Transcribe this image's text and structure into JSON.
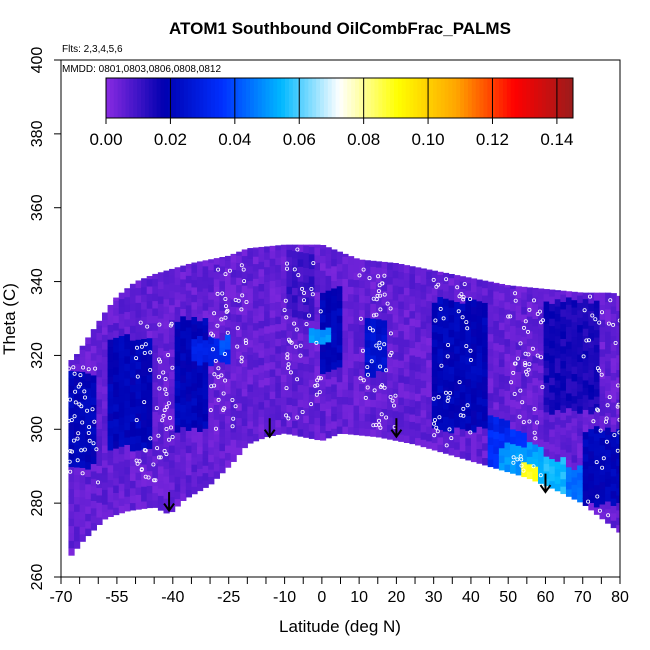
{
  "chart_data": {
    "type": "heatmap",
    "title": "ATOM1 Southbound OilCombFrac_PALMS",
    "notes": [
      "Flts: 2,3,4,5,6",
      "MMDD: 0801,0803,0806,0808,0812"
    ],
    "xlabel": "Latitude (deg N)",
    "ylabel": "Theta (C)",
    "xlim": [
      -70,
      80
    ],
    "ylim": [
      260,
      400
    ],
    "x_ticks_labeled": [
      "-70",
      "-55",
      "-40",
      "-25",
      "-10",
      "0",
      "10",
      "20",
      "30",
      "40",
      "50",
      "60",
      "70",
      "80"
    ],
    "x_ticks_labeled_values": [
      -70,
      -55,
      -40,
      -25,
      -10,
      0,
      10,
      20,
      30,
      40,
      50,
      60,
      70,
      80
    ],
    "x_ticks_minor": [
      -65,
      -60,
      -50,
      -45,
      -35,
      -30,
      -20,
      -15,
      -5,
      5,
      15,
      25,
      35,
      45,
      55,
      65,
      75
    ],
    "y_ticks": [
      260,
      280,
      300,
      320,
      340,
      360,
      380,
      400
    ],
    "colorbar": {
      "min": 0,
      "max": 0.145,
      "ticks": [
        0.0,
        0.02,
        0.04,
        0.06,
        0.08,
        0.1,
        0.12,
        0.14
      ],
      "tick_labels": [
        "0.00",
        "0.02",
        "0.04",
        "0.06",
        "0.08",
        "0.10",
        "0.12",
        "0.14"
      ],
      "colors": [
        "#8a2be2",
        "#0000b0",
        "#0030ff",
        "#00b8ff",
        "#ffffff",
        "#ffff00",
        "#ffa500",
        "#ff0000",
        "#9b1c1c"
      ]
    },
    "field_background_value": 0.005,
    "top_boundary": [
      [
        -68,
        318
      ],
      [
        -66,
        320
      ],
      [
        -62,
        326
      ],
      [
        -58,
        332
      ],
      [
        -55,
        336
      ],
      [
        -50,
        340
      ],
      [
        -45,
        342
      ],
      [
        -35,
        345
      ],
      [
        -25,
        347
      ],
      [
        -20,
        349
      ],
      [
        -10,
        350
      ],
      [
        0,
        350
      ],
      [
        10,
        346
      ],
      [
        20,
        345
      ],
      [
        30,
        343
      ],
      [
        40,
        341
      ],
      [
        50,
        339
      ],
      [
        60,
        338
      ],
      [
        70,
        337
      ],
      [
        78,
        337
      ],
      [
        80,
        336
      ]
    ],
    "bottom_boundary": [
      [
        -68,
        265
      ],
      [
        -64,
        270
      ],
      [
        -58,
        276
      ],
      [
        -52,
        278
      ],
      [
        -45,
        279
      ],
      [
        -41,
        277
      ],
      [
        -37,
        281
      ],
      [
        -30,
        285
      ],
      [
        -24,
        291
      ],
      [
        -20,
        296
      ],
      [
        -15,
        298
      ],
      [
        -10,
        299
      ],
      [
        -5,
        298
      ],
      [
        0,
        297
      ],
      [
        5,
        299
      ],
      [
        15,
        298
      ],
      [
        25,
        296
      ],
      [
        35,
        293
      ],
      [
        45,
        290
      ],
      [
        55,
        287
      ],
      [
        62,
        284
      ],
      [
        70,
        280
      ],
      [
        80,
        272
      ]
    ],
    "enhanced_regions": [
      {
        "x": [
          -68,
          -60
        ],
        "y": [
          290,
          315
        ],
        "value": 0.02
      },
      {
        "x": [
          -58,
          -45
        ],
        "y": [
          295,
          325
        ],
        "value": 0.02
      },
      {
        "x": [
          -40,
          -30
        ],
        "y": [
          300,
          330
        ],
        "value": 0.02
      },
      {
        "x": [
          -35,
          -25
        ],
        "y": [
          318,
          325
        ],
        "value": 0.03
      },
      {
        "x": [
          -28,
          -24
        ],
        "y": [
          321,
          325
        ],
        "value": 0.04
      },
      {
        "x": [
          0,
          5
        ],
        "y": [
          316,
          338
        ],
        "value": 0.02
      },
      {
        "x": [
          -3,
          3
        ],
        "y": [
          323,
          327
        ],
        "value": 0.05
      },
      {
        "x": [
          12,
          18
        ],
        "y": [
          315,
          330
        ],
        "value": 0.025
      },
      {
        "x": [
          30,
          45
        ],
        "y": [
          300,
          335
        ],
        "value": 0.02
      },
      {
        "x": [
          45,
          55
        ],
        "y": [
          288,
          300
        ],
        "value": 0.035
      },
      {
        "x": [
          48,
          60
        ],
        "y": [
          283,
          296
        ],
        "value": 0.05
      },
      {
        "x": [
          55,
          65
        ],
        "y": [
          282,
          292
        ],
        "value": 0.055
      },
      {
        "x": [
          60,
          70
        ],
        "y": [
          280,
          290
        ],
        "value": 0.045
      },
      {
        "x": [
          53,
          58
        ],
        "y": [
          287,
          291
        ],
        "value": 0.09
      },
      {
        "x": [
          45,
          50
        ],
        "y": [
          293,
          303
        ],
        "value": 0.03
      },
      {
        "x": [
          60,
          75
        ],
        "y": [
          305,
          335
        ],
        "value": 0.015
      },
      {
        "x": [
          70,
          80
        ],
        "y": [
          280,
          300
        ],
        "value": 0.02
      },
      {
        "x": [
          -10,
          -2
        ],
        "y": [
          330,
          348
        ],
        "value": 0.01
      }
    ],
    "flight_points": [
      {
        "x": [
          -68,
          -60
        ],
        "y": [
          285,
          318
        ],
        "n": 40
      },
      {
        "x": [
          -50,
          -40
        ],
        "y": [
          285,
          330
        ],
        "n": 55
      },
      {
        "x": [
          -30,
          -20
        ],
        "y": [
          300,
          348
        ],
        "n": 50
      },
      {
        "x": [
          -10,
          0
        ],
        "y": [
          300,
          350
        ],
        "n": 45
      },
      {
        "x": [
          10,
          20
        ],
        "y": [
          300,
          345
        ],
        "n": 55
      },
      {
        "x": [
          30,
          40
        ],
        "y": [
          295,
          343
        ],
        "n": 45
      },
      {
        "x": [
          50,
          60
        ],
        "y": [
          285,
          338
        ],
        "n": 50
      },
      {
        "x": [
          70,
          80
        ],
        "y": [
          275,
          337
        ],
        "n": 40
      }
    ],
    "arrows": [
      {
        "x": -41,
        "y_top": 283,
        "y_bottom": 278
      },
      {
        "x": -14,
        "y_top": 303,
        "y_bottom": 298
      },
      {
        "x": 20,
        "y_top": 303,
        "y_bottom": 298
      },
      {
        "x": 60,
        "y_top": 288,
        "y_bottom": 283
      }
    ]
  }
}
